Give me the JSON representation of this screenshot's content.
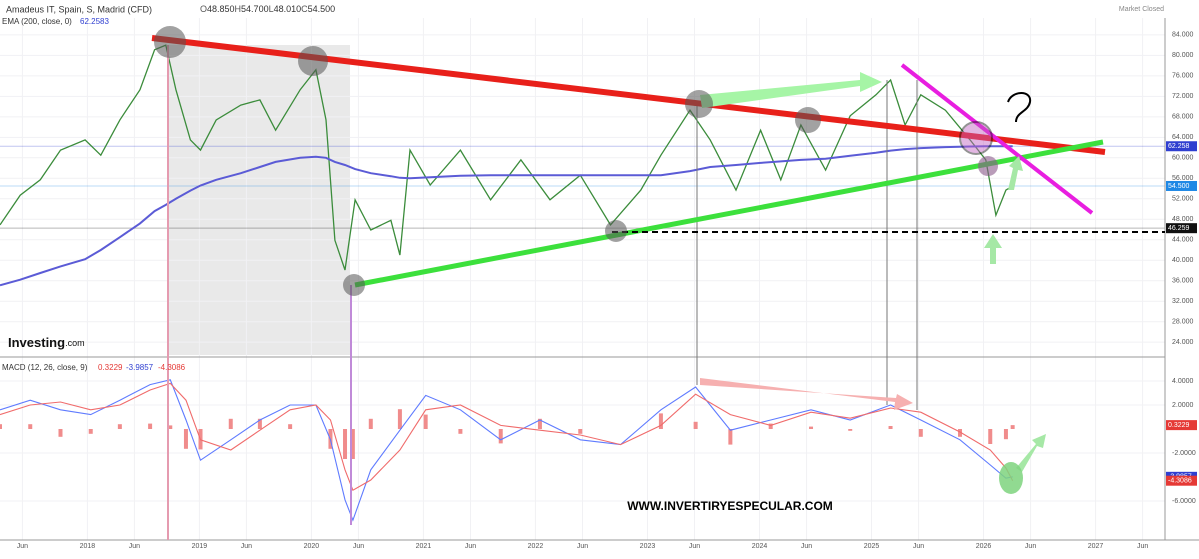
{
  "header": {
    "title": "Amadeus IT, Spain, S, Madrid (CFD)",
    "quote": [
      {
        "key": "O",
        "value": "48.850"
      },
      {
        "key": "H",
        "value": "54.700"
      },
      {
        "key": "L",
        "value": "48.010"
      },
      {
        "key": "C",
        "value": "54.500"
      }
    ],
    "status": "Market Closed",
    "logo": "Investing",
    "logo_suffix": ".com",
    "watermark": "WWW.INVERTIRYESPECULAR.COM",
    "note": "?"
  },
  "chart_data": [
    {
      "type": "line",
      "indicator": "EMA (200, close, 0)",
      "x": [
        2017.22,
        2017.4,
        2017.58,
        2017.76,
        2017.98,
        2018.12,
        2018.29,
        2018.47,
        2018.6,
        2018.7,
        2018.79,
        2018.92,
        2019.01,
        2019.15,
        2019.37,
        2019.54,
        2019.68,
        2019.9,
        2020.04,
        2020.13,
        2020.21,
        2020.3,
        2020.39,
        2020.53,
        2020.71,
        2020.79,
        2020.88,
        2021.06,
        2021.33,
        2021.6,
        2021.87,
        2022.13,
        2022.4,
        2022.67,
        2022.94,
        2023.12,
        2023.38,
        2023.56,
        2023.79,
        2024.01,
        2024.19,
        2024.37,
        2024.59,
        2024.81,
        2025.04,
        2025.17,
        2025.3,
        2025.44,
        2025.66,
        2025.88,
        2026.02,
        2026.11,
        2026.2,
        2026.26
      ],
      "series": [
        {
          "name": "Close",
          "color": "#3b8c3b",
          "values": [
            46.9,
            52.7,
            55.7,
            61.5,
            63.5,
            60.5,
            67.4,
            73.3,
            81.1,
            82.0,
            73.3,
            63.5,
            61.5,
            67.4,
            70.3,
            71.3,
            65.4,
            73.3,
            77.2,
            67.4,
            43.9,
            38.1,
            51.8,
            45.9,
            47.8,
            41.0,
            61.5,
            54.7,
            61.5,
            51.8,
            59.6,
            51.8,
            56.6,
            46.9,
            53.7,
            60.5,
            69.3,
            63.5,
            53.7,
            65.4,
            55.7,
            66.4,
            57.6,
            68.2,
            72.3,
            75.2,
            66.4,
            72.3,
            69.3,
            63.5,
            59.6,
            48.8,
            53.7,
            54.5
          ]
        },
        {
          "name": "EMA",
          "color": "#5b5bd6",
          "values": [
            35.1,
            36.2,
            37.5,
            38.8,
            40.2,
            42.0,
            44.5,
            47.2,
            49.6,
            50.8,
            52.0,
            53.6,
            54.6,
            55.7,
            57.0,
            58.2,
            59.2,
            60.0,
            60.2,
            60.0,
            59.2,
            58.6,
            57.8,
            57.0,
            56.4,
            56.1,
            56.0,
            56.2,
            56.5,
            56.6,
            56.6,
            56.6,
            56.6,
            56.6,
            56.6,
            56.6,
            57.4,
            58.2,
            58.6,
            59.0,
            59.3,
            59.6,
            59.8,
            60.4,
            61.0,
            61.4,
            61.7,
            61.9,
            62.1,
            62.2,
            62.25,
            62.26,
            62.26,
            62.2583
          ]
        }
      ],
      "xlim": [
        2017.22,
        2027.62
      ],
      "xticks": [
        {
          "value": 2017.42,
          "label": "Jun"
        },
        2018,
        {
          "value": 2018.42,
          "label": "Jun"
        },
        2019,
        {
          "value": 2019.42,
          "label": "Jun"
        },
        2020,
        {
          "value": 2020.42,
          "label": "Jun"
        },
        2021,
        {
          "value": 2021.42,
          "label": "Jun"
        },
        2022,
        {
          "value": 2022.42,
          "label": "Jun"
        },
        2023,
        {
          "value": 2023.42,
          "label": "Jun"
        },
        2024,
        {
          "value": 2024.42,
          "label": "Jun"
        },
        2025,
        {
          "value": 2025.42,
          "label": "Jun"
        },
        2026,
        {
          "value": 2026.42,
          "label": "Jun"
        },
        2027,
        {
          "value": 2027.42,
          "label": "Jun"
        }
      ],
      "ylim": [
        21.3,
        87.3
      ],
      "yticks": [
        {
          "value": 84,
          "label": "84.000"
        },
        {
          "value": 80,
          "label": "80.000"
        },
        {
          "value": 76,
          "label": "76.000"
        },
        {
          "value": 72,
          "label": "72.000"
        },
        {
          "value": 68,
          "label": "68.000"
        },
        {
          "value": 64,
          "label": "64.000"
        },
        {
          "value": 60,
          "label": "60.000"
        },
        {
          "value": 56,
          "label": "56.000"
        },
        {
          "value": 52,
          "label": "52.000"
        },
        {
          "value": 48,
          "label": "48.000"
        },
        {
          "value": 44,
          "label": "44.000"
        },
        {
          "value": 40,
          "label": "40.000"
        },
        {
          "value": 36,
          "label": "36.000"
        },
        {
          "value": 32,
          "label": "32.000"
        },
        {
          "value": 28,
          "label": "28.000"
        },
        {
          "value": 24,
          "label": "24.000"
        }
      ],
      "price_labels": [
        {
          "value": 62.258,
          "label": "62.258",
          "color": "#2f3fd0"
        },
        {
          "value": 54.5,
          "label": "54.500",
          "color": "#1e88e5"
        },
        {
          "value": 46.259,
          "label": "46.259",
          "color": "#111111"
        }
      ],
      "grid": true
    },
    {
      "type": "macd",
      "indicator": "MACD (12, 26, close, 9)",
      "x": [
        2017.22,
        2017.49,
        2017.76,
        2018.03,
        2018.29,
        2018.56,
        2018.74,
        2018.88,
        2019.01,
        2019.28,
        2019.54,
        2019.81,
        2020.04,
        2020.17,
        2020.3,
        2020.37,
        2020.53,
        2020.79,
        2021.02,
        2021.33,
        2021.69,
        2022.04,
        2022.4,
        2022.76,
        2023.12,
        2023.43,
        2023.74,
        2024.1,
        2024.46,
        2024.81,
        2025.17,
        2025.44,
        2025.79,
        2026.06,
        2026.2,
        2026.26
      ],
      "series": [
        {
          "name": "Histogram",
          "color": "#f08c8c",
          "values": [
            0.4,
            0.4,
            -0.65,
            -0.4,
            0.4,
            0.45,
            0.3,
            -1.65,
            -1.7,
            0.85,
            0.85,
            0.4,
            0,
            -1.65,
            -2.5,
            -2.5,
            0.85,
            1.65,
            1.2,
            -0.4,
            -1.2,
            0.85,
            -0.4,
            0,
            1.3,
            0.6,
            -1.3,
            0.45,
            0.2,
            -0.15,
            0.25,
            -0.65,
            -0.65,
            -1.25,
            -0.85,
            0.3229
          ]
        },
        {
          "name": "MACD",
          "color": "#5f7bff",
          "values": [
            1.6,
            2.4,
            1.6,
            1.2,
            2.4,
            3.7,
            4.1,
            0.75,
            -2.6,
            -0.9,
            0.75,
            2.0,
            2.0,
            -0.9,
            -5.9,
            -7.6,
            -3.4,
            -0.1,
            2.8,
            1.6,
            -0.9,
            0.75,
            -0.9,
            -1.3,
            1.6,
            3.5,
            -0.1,
            0.75,
            1.6,
            0.75,
            2.0,
            0.75,
            -0.9,
            -3.0,
            -4.1,
            -3.9857
          ]
        },
        {
          "name": "Signal",
          "color": "#f06b6b",
          "values": [
            1.2,
            2.0,
            2.25,
            1.6,
            2.0,
            3.25,
            3.8,
            2.4,
            -0.9,
            -1.75,
            -0.1,
            1.6,
            2.0,
            0.75,
            -3.4,
            -5.1,
            -4.25,
            -1.75,
            1.6,
            2.0,
            0.3,
            -0.1,
            -0.5,
            -1.3,
            0.3,
            2.9,
            1.2,
            0.3,
            1.4,
            0.9,
            1.75,
            1.4,
            -0.25,
            -1.75,
            -3.25,
            -4.3086
          ]
        }
      ],
      "ylim": [
        -9.25,
        5.75
      ],
      "yticks": [
        {
          "value": 4,
          "label": "4.0000"
        },
        {
          "value": 2,
          "label": "2.0000"
        },
        {
          "value": -2,
          "label": "-2.0000"
        },
        {
          "value": -6,
          "label": "-6.0000"
        }
      ],
      "price_labels": [
        {
          "value": 0.3229,
          "label": "0.3229",
          "color": "#e53935"
        },
        {
          "value": -3.9857,
          "label": "-3.9857",
          "color": "#2f3fd0"
        },
        {
          "value": -4.3086,
          "label": "-4.3086",
          "color": "#e53935"
        }
      ],
      "grid": true
    }
  ]
}
